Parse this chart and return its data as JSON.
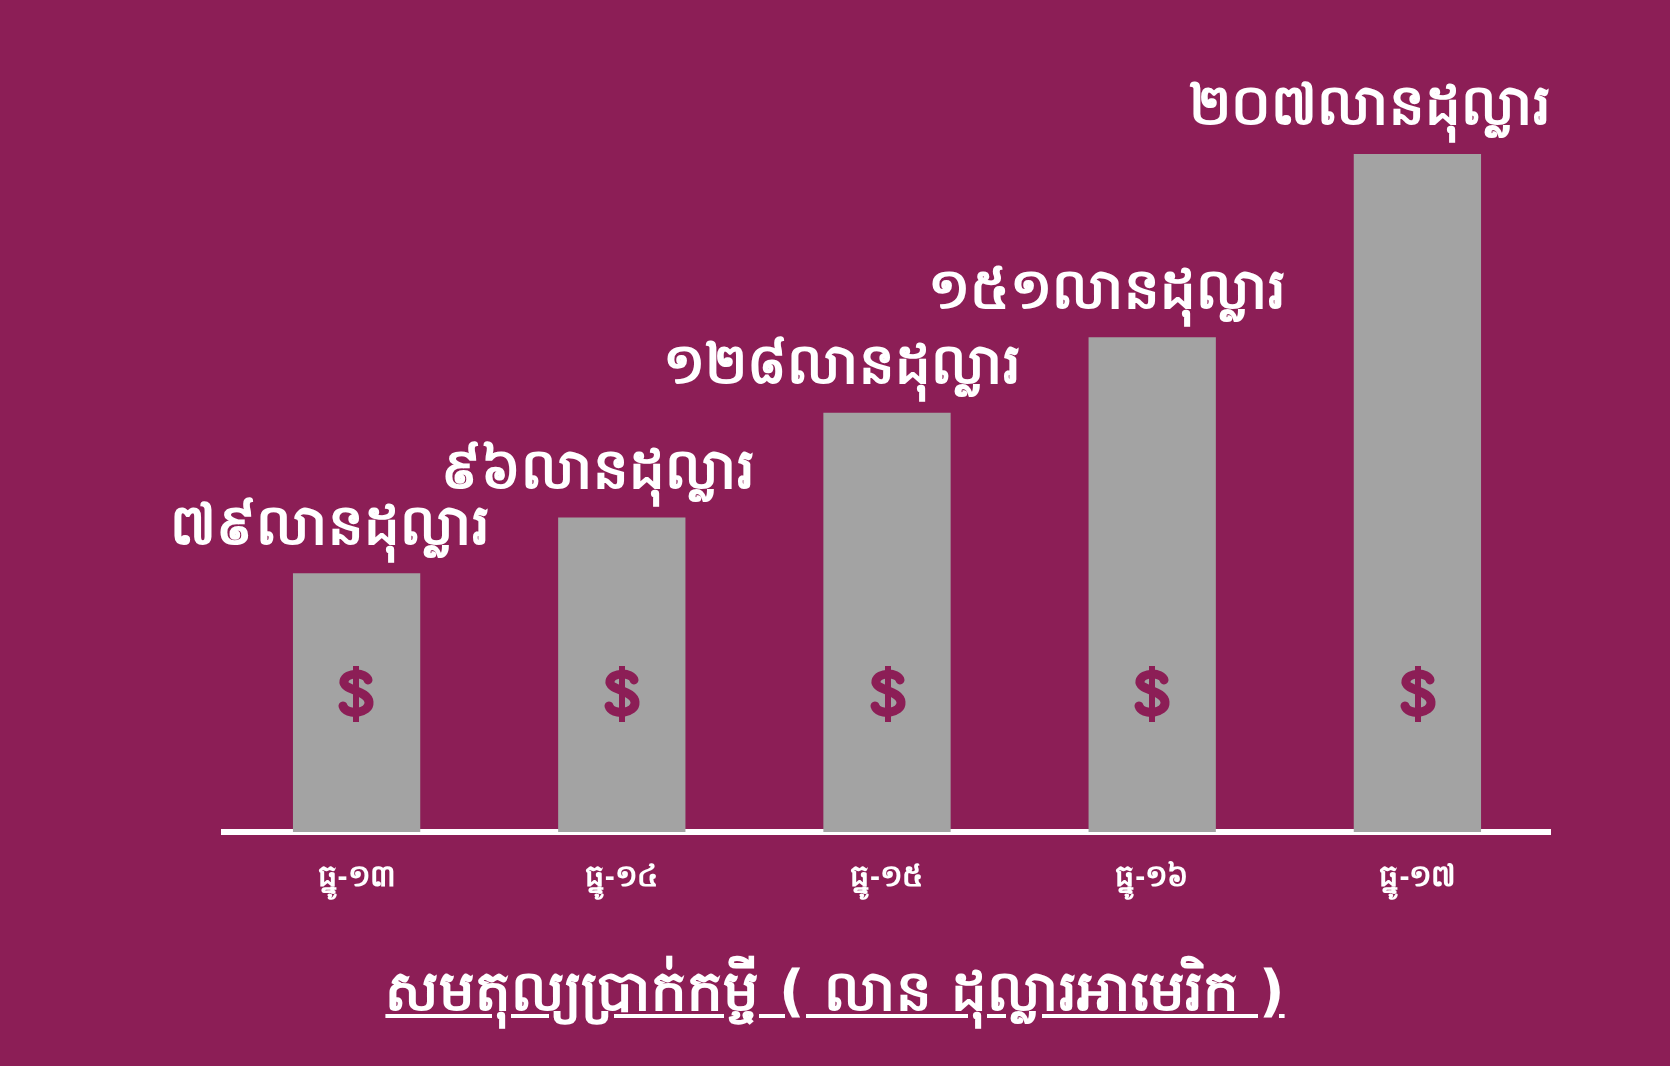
{
  "chart_data": {
    "type": "bar",
    "title": "សមតុល្យប្រាក់កម្ចី ( លាន ដុល្លារអាមេរិក )",
    "categories": [
      "ធ្នូ-១៣",
      "ធ្នូ-១៤",
      "ធ្នូ-១៥",
      "ធ្នូ-១៦",
      "ធ្នូ-១៧"
    ],
    "values": [
      79,
      96,
      128,
      151,
      207
    ],
    "value_labels": [
      "៧៩លានដុល្លារ",
      "៩៦លានដុល្លារ",
      "១២៨លានដុល្លារ",
      "១៥១លានដុល្លារ",
      "២០៧លានដុល្លារ"
    ],
    "color": "#a3a3a3",
    "grid": false,
    "legend": false
  }
}
